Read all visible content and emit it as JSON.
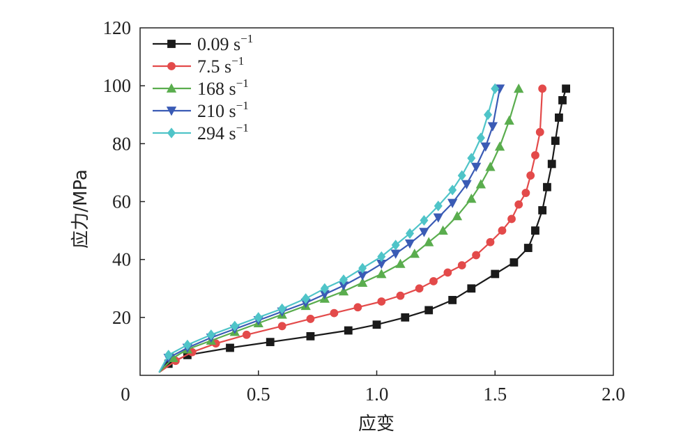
{
  "chart_data": {
    "type": "line",
    "title": "",
    "xlabel": "应变",
    "ylabel": "应力/MPa",
    "xlim": [
      0,
      2.0
    ],
    "ylim": [
      0,
      120
    ],
    "xticks": [
      0,
      0.5,
      1.0,
      1.5,
      2.0
    ],
    "xtick_labels": [
      "0",
      "0.5",
      "1.0",
      "1.5",
      "2.0"
    ],
    "yticks": [
      20,
      40,
      60,
      80,
      100,
      120
    ],
    "ytick_labels": [
      "20",
      "40",
      "60",
      "80",
      "100",
      "120"
    ],
    "grid": false,
    "legend_position": "top-left",
    "series": [
      {
        "name": "0.09 s",
        "superscript": "−1",
        "color": "#1a1a1a",
        "marker": "square",
        "x": [
          0.08,
          0.12,
          0.2,
          0.38,
          0.55,
          0.72,
          0.88,
          1.0,
          1.12,
          1.22,
          1.32,
          1.4,
          1.5,
          1.58,
          1.64,
          1.67,
          1.7,
          1.72,
          1.74,
          1.755,
          1.77,
          1.785,
          1.8
        ],
        "y": [
          1,
          4,
          7,
          9.5,
          11.5,
          13.5,
          15.5,
          17.5,
          20,
          22.5,
          26,
          30,
          35,
          39,
          44,
          50,
          57,
          65,
          73,
          81,
          89,
          95,
          99
        ]
      },
      {
        "name": "7.5 s",
        "superscript": "−1",
        "color": "#e34a4a",
        "marker": "circle",
        "x": [
          0.08,
          0.15,
          0.22,
          0.32,
          0.45,
          0.6,
          0.72,
          0.82,
          0.92,
          1.02,
          1.1,
          1.18,
          1.24,
          1.3,
          1.36,
          1.42,
          1.48,
          1.53,
          1.57,
          1.6,
          1.63,
          1.65,
          1.67,
          1.69,
          1.7
        ],
        "y": [
          1,
          5,
          8,
          11,
          14,
          17,
          19.5,
          21.5,
          23.5,
          25.5,
          27.5,
          30,
          32.5,
          35.5,
          38,
          41.5,
          46,
          50,
          54,
          59,
          63,
          69,
          76,
          84,
          99
        ]
      },
      {
        "name": "168 s",
        "superscript": "−1",
        "color": "#5aad4e",
        "marker": "triangle-up",
        "x": [
          0.08,
          0.14,
          0.2,
          0.3,
          0.4,
          0.5,
          0.6,
          0.7,
          0.78,
          0.86,
          0.94,
          1.02,
          1.1,
          1.16,
          1.22,
          1.28,
          1.34,
          1.4,
          1.44,
          1.48,
          1.52,
          1.56,
          1.6
        ],
        "y": [
          1,
          6,
          9,
          12,
          15,
          18,
          21,
          24,
          26.5,
          29,
          32,
          35,
          38.5,
          42,
          46,
          50,
          55,
          61,
          66,
          72,
          79,
          88,
          99
        ]
      },
      {
        "name": "210 s",
        "superscript": "−1",
        "color": "#3a5bb5",
        "marker": "triangle-down",
        "x": [
          0.08,
          0.12,
          0.2,
          0.3,
          0.4,
          0.5,
          0.6,
          0.7,
          0.78,
          0.86,
          0.94,
          1.02,
          1.08,
          1.14,
          1.2,
          1.26,
          1.32,
          1.38,
          1.42,
          1.46,
          1.49,
          1.52
        ],
        "y": [
          1,
          6,
          9.5,
          13,
          16,
          19,
          22,
          25,
          28,
          31,
          34.5,
          38.5,
          42,
          45.5,
          49.5,
          54.5,
          59.5,
          66,
          72,
          79,
          86,
          99
        ]
      },
      {
        "name": "294 s",
        "superscript": "−1",
        "color": "#4fc4c8",
        "marker": "diamond",
        "x": [
          0.08,
          0.12,
          0.2,
          0.3,
          0.4,
          0.5,
          0.6,
          0.7,
          0.78,
          0.86,
          0.94,
          1.02,
          1.08,
          1.14,
          1.2,
          1.26,
          1.32,
          1.36,
          1.4,
          1.44,
          1.47,
          1.5
        ],
        "y": [
          1,
          7,
          10.5,
          14,
          17,
          20,
          23,
          26.5,
          30,
          33,
          37,
          41,
          45,
          49,
          53.5,
          58.5,
          64,
          69,
          75,
          82,
          90,
          99
        ]
      }
    ]
  }
}
